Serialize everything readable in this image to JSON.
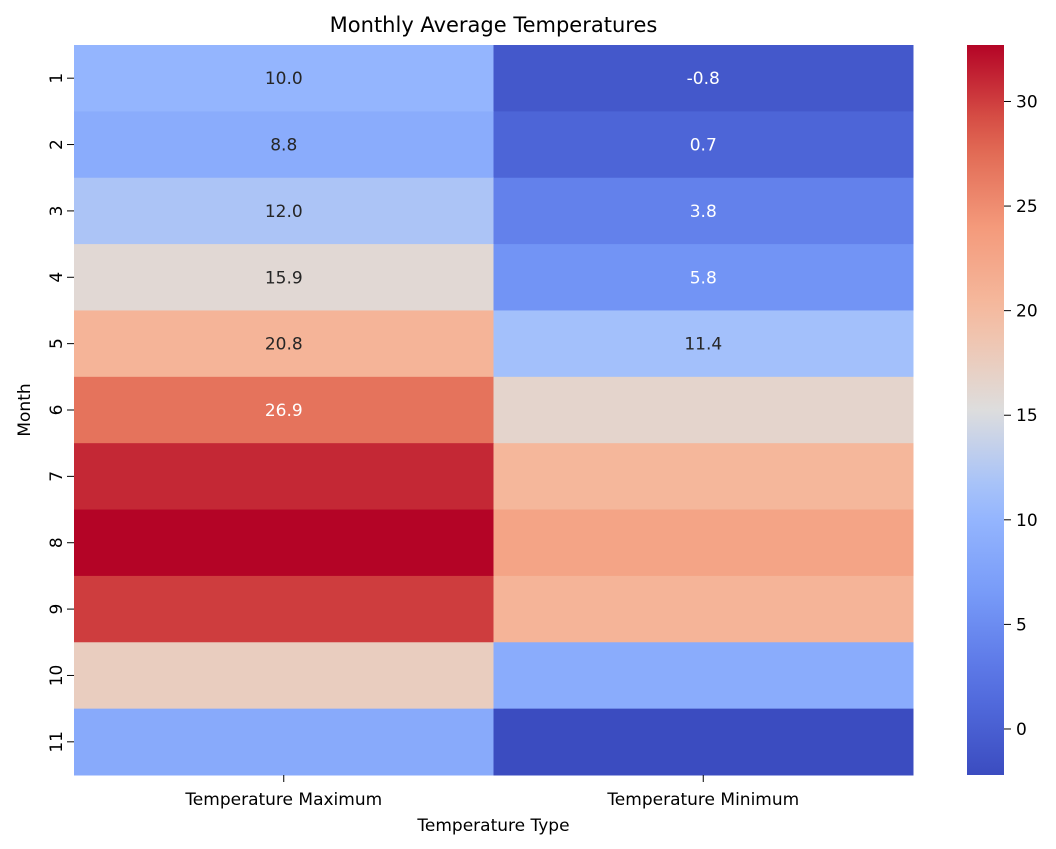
{
  "chart_data": {
    "type": "heatmap",
    "title": "Monthly Average Temperatures",
    "xlabel": "Temperature Type",
    "ylabel": "Month",
    "columns": [
      "Temperature Maximum",
      "Temperature Minimum"
    ],
    "rows": [
      "1",
      "2",
      "3",
      "4",
      "5",
      "6",
      "7",
      "8",
      "9",
      "10",
      "11"
    ],
    "values": [
      [
        10.0,
        -0.8
      ],
      [
        8.8,
        0.7
      ],
      [
        12.0,
        3.8
      ],
      [
        15.9,
        5.8
      ],
      [
        20.8,
        11.4
      ],
      [
        26.9,
        16.5
      ],
      [
        31.0,
        20.5
      ],
      [
        32.7,
        22.8
      ],
      [
        30.0,
        20.8
      ],
      [
        17.5,
        8.8
      ],
      [
        8.5,
        -2.2
      ]
    ],
    "annotations": [
      [
        "10.0",
        "-0.8"
      ],
      [
        "8.8",
        "0.7"
      ],
      [
        "12.0",
        "3.8"
      ],
      [
        "15.9",
        "5.8"
      ],
      [
        "20.8",
        "11.4"
      ],
      [
        "26.9",
        ""
      ],
      [
        "",
        ""
      ],
      [
        "",
        ""
      ],
      [
        "",
        ""
      ],
      [
        "",
        ""
      ],
      [
        "",
        ""
      ]
    ],
    "colormap": "coolwarm",
    "colorbar": {
      "vmin": -2.2,
      "vmax": 32.7,
      "ticks": [
        0,
        5,
        10,
        15,
        20,
        25,
        30
      ]
    }
  }
}
